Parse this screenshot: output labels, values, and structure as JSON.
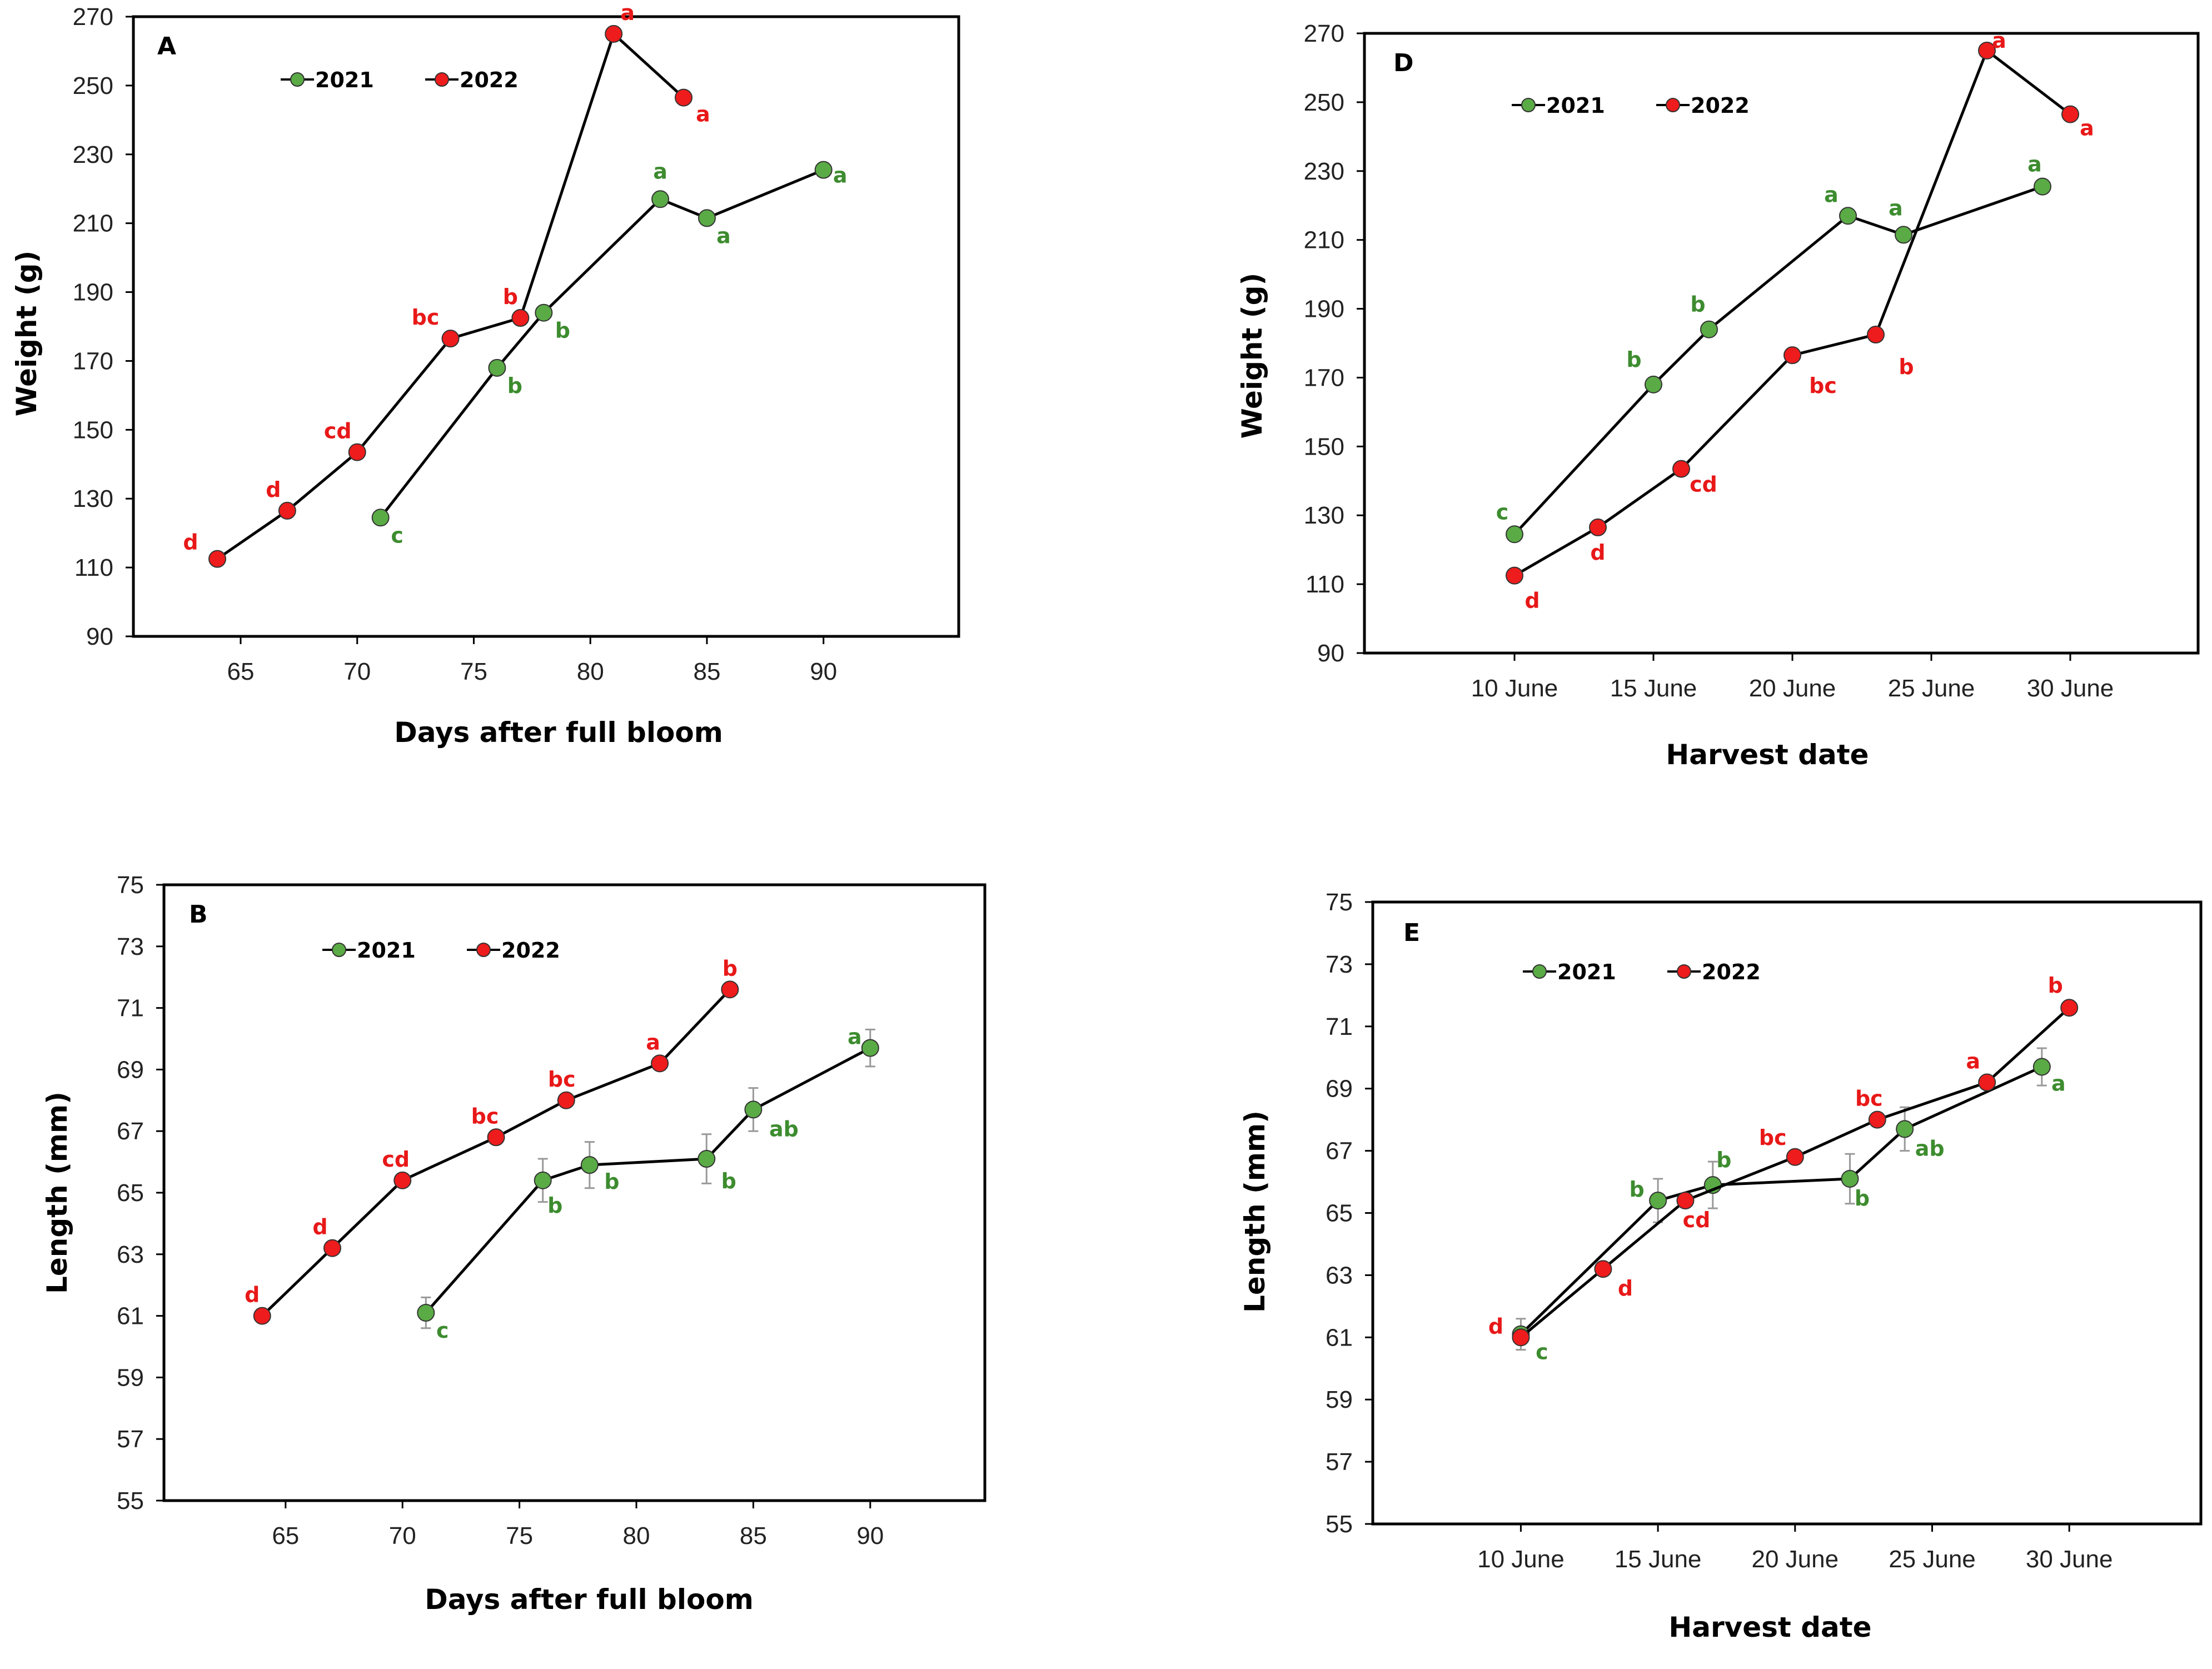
{
  "colors": {
    "s2021": "#5aab45",
    "s2022": "#ee1c1c",
    "sig2021": "#3d8c2f",
    "sig2022": "#e81818",
    "frame": "#000000"
  },
  "chart_data": [
    {
      "panel": "A",
      "type": "line",
      "xlabel": "Days after full bloom",
      "ylabel": "Weight (g)",
      "xlim": [
        60.4,
        95.8
      ],
      "ylim": [
        90,
        270
      ],
      "yticks": [
        90,
        110,
        130,
        150,
        170,
        190,
        210,
        230,
        250,
        270
      ],
      "xticks": [
        {
          "v": 65,
          "label": "65"
        },
        {
          "v": 70,
          "label": "70"
        },
        {
          "v": 75,
          "label": "75"
        },
        {
          "v": 80,
          "label": "80"
        },
        {
          "v": 85,
          "label": "85"
        },
        {
          "v": 90,
          "label": "90"
        }
      ],
      "legend": [
        "2021",
        "2022"
      ],
      "series": [
        {
          "name": "2021",
          "points": [
            {
              "x": 71,
              "y": 124.5,
              "sig": "c"
            },
            {
              "x": 76,
              "y": 168,
              "sig": "b"
            },
            {
              "x": 78,
              "y": 184,
              "sig": "b"
            },
            {
              "x": 83,
              "y": 217,
              "sig": "a"
            },
            {
              "x": 85,
              "y": 211.5,
              "sig": "a"
            },
            {
              "x": 90,
              "y": 225.5,
              "sig": "a"
            }
          ]
        },
        {
          "name": "2022",
          "points": [
            {
              "x": 64,
              "y": 112.5,
              "sig": "d"
            },
            {
              "x": 67,
              "y": 126.5,
              "sig": "d"
            },
            {
              "x": 70,
              "y": 143.5,
              "sig": "cd"
            },
            {
              "x": 74,
              "y": 176.5,
              "sig": "bc"
            },
            {
              "x": 77,
              "y": 182.5,
              "sig": "b"
            },
            {
              "x": 81,
              "y": 265,
              "sig": "a"
            },
            {
              "x": 84,
              "y": 246.5,
              "sig": "a"
            }
          ]
        }
      ]
    },
    {
      "panel": "B",
      "type": "line",
      "xlabel": "Days after full bloom",
      "ylabel": "Length (mm)",
      "xlim": [
        59.8,
        94.9
      ],
      "ylim": [
        55,
        75
      ],
      "yticks": [
        55,
        57,
        59,
        61,
        63,
        65,
        67,
        69,
        71,
        73,
        75
      ],
      "xticks": [
        {
          "v": 65,
          "label": "65"
        },
        {
          "v": 70,
          "label": "70"
        },
        {
          "v": 75,
          "label": "75"
        },
        {
          "v": 80,
          "label": "80"
        },
        {
          "v": 85,
          "label": "85"
        },
        {
          "v": 90,
          "label": "90"
        }
      ],
      "legend": [
        "2021",
        "2022"
      ],
      "series": [
        {
          "name": "2021",
          "points": [
            {
              "x": 71,
              "y": 61.1,
              "sig": "c",
              "err": 0.5
            },
            {
              "x": 76,
              "y": 65.4,
              "sig": "b",
              "err": 0.7
            },
            {
              "x": 78,
              "y": 65.9,
              "sig": "b",
              "err": 0.75
            },
            {
              "x": 83,
              "y": 66.1,
              "sig": "b",
              "err": 0.8
            },
            {
              "x": 85,
              "y": 67.7,
              "sig": "ab",
              "err": 0.7
            },
            {
              "x": 90,
              "y": 69.7,
              "sig": "a",
              "err": 0.6
            }
          ]
        },
        {
          "name": "2022",
          "points": [
            {
              "x": 64,
              "y": 61.0,
              "sig": "d"
            },
            {
              "x": 67,
              "y": 63.2,
              "sig": "d"
            },
            {
              "x": 70,
              "y": 65.4,
              "sig": "cd"
            },
            {
              "x": 74,
              "y": 66.8,
              "sig": "bc"
            },
            {
              "x": 77,
              "y": 68.0,
              "sig": "bc"
            },
            {
              "x": 81,
              "y": 69.2,
              "sig": "a"
            },
            {
              "x": 84,
              "y": 71.6,
              "sig": "b"
            }
          ]
        }
      ]
    },
    {
      "panel": "D",
      "type": "line",
      "xlabel": "Harvest date",
      "ylabel": "Weight (g)",
      "xlim": [
        4.6,
        34.6
      ],
      "ylim": [
        90,
        270
      ],
      "yticks": [
        90,
        110,
        130,
        150,
        170,
        190,
        210,
        230,
        250,
        270
      ],
      "xticks": [
        {
          "v": 10,
          "label": "10 June"
        },
        {
          "v": 15,
          "label": "15 June"
        },
        {
          "v": 20,
          "label": "20 June"
        },
        {
          "v": 25,
          "label": "25 June"
        },
        {
          "v": 30,
          "label": "30 June"
        }
      ],
      "legend": [
        "2021",
        "2022"
      ],
      "series": [
        {
          "name": "2021",
          "points": [
            {
              "x": 10,
              "y": 124.5,
              "sig": "c"
            },
            {
              "x": 15,
              "y": 168,
              "sig": "b"
            },
            {
              "x": 17,
              "y": 184,
              "sig": "b"
            },
            {
              "x": 22,
              "y": 217,
              "sig": "a"
            },
            {
              "x": 24,
              "y": 211.5,
              "sig": "a"
            },
            {
              "x": 29,
              "y": 225.5,
              "sig": "a"
            }
          ]
        },
        {
          "name": "2022",
          "points": [
            {
              "x": 10,
              "y": 112.5,
              "sig": "d"
            },
            {
              "x": 13,
              "y": 126.5,
              "sig": "d"
            },
            {
              "x": 16,
              "y": 143.5,
              "sig": "cd"
            },
            {
              "x": 20,
              "y": 176.5,
              "sig": "bc"
            },
            {
              "x": 23,
              "y": 182.5,
              "sig": "b"
            },
            {
              "x": 27,
              "y": 265,
              "sig": "a"
            },
            {
              "x": 30,
              "y": 246.5,
              "sig": "a"
            }
          ]
        }
      ]
    },
    {
      "panel": "E",
      "type": "line",
      "xlabel": "Harvest date",
      "ylabel": "Length (mm)",
      "xlim": [
        4.6,
        34.8
      ],
      "ylim": [
        55,
        75
      ],
      "yticks": [
        55,
        57,
        59,
        61,
        63,
        65,
        67,
        69,
        71,
        73,
        75
      ],
      "xticks": [
        {
          "v": 10,
          "label": "10 June"
        },
        {
          "v": 15,
          "label": "15 June"
        },
        {
          "v": 20,
          "label": "20 June"
        },
        {
          "v": 25,
          "label": "25 June"
        },
        {
          "v": 30,
          "label": "30 June"
        }
      ],
      "legend": [
        "2021",
        "2022"
      ],
      "series": [
        {
          "name": "2021",
          "points": [
            {
              "x": 10,
              "y": 61.1,
              "sig": "c",
              "err": 0.5
            },
            {
              "x": 15,
              "y": 65.4,
              "sig": "b",
              "err": 0.7
            },
            {
              "x": 17,
              "y": 65.9,
              "sig": "b",
              "err": 0.75
            },
            {
              "x": 22,
              "y": 66.1,
              "sig": "b",
              "err": 0.8
            },
            {
              "x": 24,
              "y": 67.7,
              "sig": "ab",
              "err": 0.7
            },
            {
              "x": 29,
              "y": 69.7,
              "sig": "a",
              "err": 0.6
            }
          ]
        },
        {
          "name": "2022",
          "points": [
            {
              "x": 10,
              "y": 61.0,
              "sig": "d"
            },
            {
              "x": 13,
              "y": 63.2,
              "sig": "d"
            },
            {
              "x": 16,
              "y": 65.4,
              "sig": "cd"
            },
            {
              "x": 20,
              "y": 66.8,
              "sig": "bc"
            },
            {
              "x": 23,
              "y": 68.0,
              "sig": "bc"
            },
            {
              "x": 27,
              "y": 69.2,
              "sig": "a"
            },
            {
              "x": 30,
              "y": 71.6,
              "sig": "b"
            }
          ]
        }
      ]
    }
  ]
}
